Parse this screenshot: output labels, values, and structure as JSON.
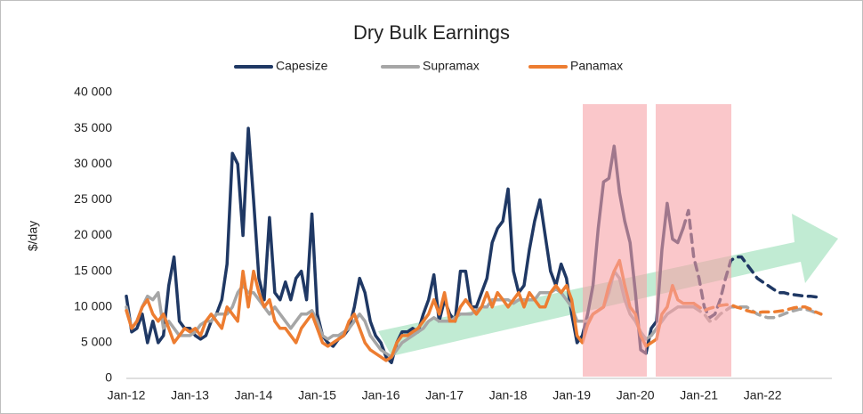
{
  "chart_data": {
    "type": "line",
    "title": "Dry Bulk Earnings",
    "y_label": "$/day",
    "categories": [
      "Jan-12",
      null,
      null,
      null,
      null,
      null,
      null,
      null,
      null,
      null,
      null,
      null,
      "Jan-13",
      null,
      null,
      null,
      null,
      null,
      null,
      null,
      null,
      null,
      null,
      null,
      "Jan-14",
      null,
      null,
      null,
      null,
      null,
      null,
      null,
      null,
      null,
      null,
      null,
      "Jan-15",
      null,
      null,
      null,
      null,
      null,
      null,
      null,
      null,
      null,
      null,
      null,
      "Jan-16",
      null,
      null,
      null,
      null,
      null,
      null,
      null,
      null,
      null,
      null,
      null,
      "Jan-17",
      null,
      null,
      null,
      null,
      null,
      null,
      null,
      null,
      null,
      null,
      null,
      "Jan-18",
      null,
      null,
      null,
      null,
      null,
      null,
      null,
      null,
      null,
      null,
      null,
      "Jan-19",
      null,
      null,
      null,
      null,
      null,
      null,
      null,
      null,
      null,
      null,
      null,
      "Jan-20",
      null,
      null,
      null,
      null,
      null,
      null,
      null,
      null,
      null,
      null,
      null,
      "Jan-21",
      null,
      null,
      null,
      null,
      null,
      null,
      null,
      null,
      null,
      null,
      null,
      "Jan-22",
      null,
      null,
      null,
      null,
      null,
      null,
      null,
      null,
      null,
      null,
      null
    ],
    "ylim": [
      0,
      40000
    ],
    "yticks": [
      0,
      {
        "value": 5000,
        "label": "5 000"
      },
      {
        "value": 10000,
        "label": "10 000"
      },
      {
        "value": 15000,
        "label": "15 000"
      },
      {
        "value": 20000,
        "label": "20 000"
      },
      {
        "value": 25000,
        "label": "25 000"
      },
      {
        "value": 30000,
        "label": "30 000"
      },
      {
        "value": 35000,
        "label": "35 000"
      },
      {
        "value": 40000,
        "label": "40 000"
      }
    ],
    "legend": "top",
    "series": [
      {
        "name": "Capesize",
        "color": "#1f3864",
        "dash": false,
        "values": [
          11500,
          6500,
          7000,
          9000,
          5000,
          8000,
          5000,
          6000,
          13000,
          17000,
          8000,
          7000,
          7000,
          6000,
          5500,
          6000,
          8000,
          9000,
          11000,
          16000,
          31500,
          30000,
          20000,
          35000,
          25000,
          14000,
          11000,
          22500,
          12000,
          11000,
          13500,
          11000,
          14000,
          15000,
          11000,
          23000,
          9000,
          6000,
          5000,
          4500,
          5500,
          6000,
          7000,
          10000,
          14000,
          12000,
          8000,
          6000,
          5000,
          3000,
          2200,
          5000,
          6500,
          6500,
          7000,
          6500,
          9000,
          11000,
          14500,
          8000,
          11000,
          9000,
          8000,
          15000,
          15000,
          10000,
          10000,
          12000,
          14000,
          19000,
          21000,
          22000,
          26500,
          15000,
          12000,
          13000,
          18000,
          22000,
          25000,
          20000,
          15000,
          13000,
          16000,
          14000,
          9000,
          5000,
          6000,
          9000,
          13000,
          21000,
          27500,
          28000,
          32500,
          26000,
          22000,
          19000,
          12000,
          4000,
          3500,
          7000,
          8000,
          18000,
          24500,
          19500,
          19000,
          21000,
          null,
          null,
          null,
          null,
          null,
          null,
          null,
          null,
          null,
          null,
          null,
          null,
          null,
          null,
          null,
          null,
          null,
          null,
          null,
          null,
          null,
          null,
          null,
          null,
          null,
          null
        ]
      },
      {
        "name": "Supramax",
        "color": "#a6a6a6",
        "dash": false,
        "values": [
          10000,
          7000,
          8000,
          10000,
          11500,
          11000,
          12000,
          7000,
          8000,
          7000,
          6000,
          6000,
          6000,
          6500,
          7500,
          8000,
          8000,
          9000,
          9000,
          9000,
          10000,
          12000,
          13000,
          12000,
          12000,
          11000,
          10000,
          9000,
          10000,
          9000,
          8000,
          7000,
          8000,
          9000,
          9000,
          9500,
          8000,
          6000,
          5500,
          6000,
          6000,
          6500,
          7000,
          8000,
          9000,
          8000,
          6000,
          5000,
          4000,
          3500,
          3000,
          4000,
          5000,
          5500,
          6000,
          6500,
          7000,
          8000,
          8500,
          8000,
          8000,
          8000,
          8500,
          9000,
          9000,
          9000,
          9500,
          10000,
          10000,
          11000,
          11000,
          11000,
          11000,
          10500,
          11000,
          11000,
          11000,
          11000,
          12000,
          12000,
          12000,
          12500,
          12000,
          11000,
          10000,
          8000,
          8000,
          8000,
          9000,
          9500,
          10000,
          12000,
          15000,
          14000,
          11000,
          9000,
          8000,
          6500,
          5500,
          6000,
          7000,
          8000,
          9000,
          9500,
          10000,
          10000,
          10000,
          10000,
          null,
          null,
          null,
          null,
          null,
          null,
          null,
          null,
          null,
          null,
          null,
          null,
          null,
          null,
          null,
          null,
          null,
          null,
          null,
          null,
          null,
          null,
          null,
          null
        ]
      },
      {
        "name": "Panamax",
        "color": "#ed7d31",
        "dash": false,
        "values": [
          9500,
          7000,
          8000,
          10000,
          11000,
          9000,
          8000,
          9000,
          7000,
          5000,
          6000,
          7000,
          6500,
          7000,
          6000,
          8000,
          9000,
          8000,
          7000,
          10000,
          9000,
          8000,
          15000,
          10000,
          15000,
          12000,
          10000,
          11000,
          8000,
          7000,
          7000,
          6000,
          5000,
          7000,
          8000,
          9000,
          7000,
          5000,
          4500,
          5000,
          5500,
          6000,
          8000,
          9000,
          7000,
          5000,
          4000,
          3500,
          3000,
          2500,
          3000,
          5000,
          6000,
          6000,
          6500,
          7000,
          8000,
          9000,
          11000,
          9000,
          12000,
          8000,
          8000,
          10000,
          11000,
          10000,
          9000,
          10000,
          12000,
          10000,
          12000,
          11000,
          10000,
          11000,
          12000,
          10000,
          12000,
          11000,
          10000,
          10000,
          12000,
          13000,
          12000,
          13000,
          11000,
          6000,
          5000,
          7500,
          9000,
          9500,
          10000,
          13000,
          15000,
          16500,
          13000,
          10000,
          9000,
          6000,
          4500,
          5000,
          5500,
          9000,
          10000,
          13000,
          11000,
          10500,
          10500,
          10500,
          null,
          null,
          null,
          null,
          null,
          null,
          null,
          null,
          null,
          null,
          null,
          null,
          null,
          null,
          null,
          null,
          null,
          null,
          null,
          null,
          null,
          null,
          null,
          null
        ]
      },
      {
        "name": "Capesize",
        "color": "#1f3864",
        "dash": true,
        "values": [
          null,
          null,
          null,
          null,
          null,
          null,
          null,
          null,
          null,
          null,
          null,
          null,
          null,
          null,
          null,
          null,
          null,
          null,
          null,
          null,
          null,
          null,
          null,
          null,
          null,
          null,
          null,
          null,
          null,
          null,
          null,
          null,
          null,
          null,
          null,
          null,
          null,
          null,
          null,
          null,
          null,
          null,
          null,
          null,
          null,
          null,
          null,
          null,
          null,
          null,
          null,
          null,
          null,
          null,
          null,
          null,
          null,
          null,
          null,
          null,
          null,
          null,
          null,
          null,
          null,
          null,
          null,
          null,
          null,
          null,
          null,
          null,
          null,
          null,
          null,
          null,
          null,
          null,
          null,
          null,
          null,
          null,
          null,
          null,
          null,
          null,
          null,
          null,
          null,
          null,
          null,
          null,
          null,
          null,
          null,
          null,
          null,
          null,
          null,
          null,
          null,
          null,
          null,
          null,
          null,
          21000,
          23500,
          17000,
          14000,
          10000,
          8500,
          9000,
          11000,
          14000,
          16500,
          17000,
          17000,
          16000,
          15000,
          14000,
          13500,
          13000,
          12500,
          12000,
          12000,
          11800,
          11700,
          11600,
          11500,
          11500,
          11400,
          11300
        ]
      },
      {
        "name": "Supramax",
        "color": "#a6a6a6",
        "dash": true,
        "values": [
          null,
          null,
          null,
          null,
          null,
          null,
          null,
          null,
          null,
          null,
          null,
          null,
          null,
          null,
          null,
          null,
          null,
          null,
          null,
          null,
          null,
          null,
          null,
          null,
          null,
          null,
          null,
          null,
          null,
          null,
          null,
          null,
          null,
          null,
          null,
          null,
          null,
          null,
          null,
          null,
          null,
          null,
          null,
          null,
          null,
          null,
          null,
          null,
          null,
          null,
          null,
          null,
          null,
          null,
          null,
          null,
          null,
          null,
          null,
          null,
          null,
          null,
          null,
          null,
          null,
          null,
          null,
          null,
          null,
          null,
          null,
          null,
          null,
          null,
          null,
          null,
          null,
          null,
          null,
          null,
          null,
          null,
          null,
          null,
          null,
          null,
          null,
          null,
          null,
          null,
          null,
          null,
          null,
          null,
          null,
          null,
          null,
          null,
          null,
          null,
          null,
          null,
          null,
          null,
          null,
          null,
          null,
          10000,
          9500,
          9000,
          8000,
          8200,
          9000,
          9500,
          10000,
          10000,
          10000,
          10000,
          9500,
          9000,
          8700,
          8500,
          8500,
          8700,
          9000,
          9300,
          9500,
          9700,
          9700,
          9500,
          9200,
          9000
        ]
      },
      {
        "name": "Panamax",
        "color": "#ed7d31",
        "dash": true,
        "values": [
          null,
          null,
          null,
          null,
          null,
          null,
          null,
          null,
          null,
          null,
          null,
          null,
          null,
          null,
          null,
          null,
          null,
          null,
          null,
          null,
          null,
          null,
          null,
          null,
          null,
          null,
          null,
          null,
          null,
          null,
          null,
          null,
          null,
          null,
          null,
          null,
          null,
          null,
          null,
          null,
          null,
          null,
          null,
          null,
          null,
          null,
          null,
          null,
          null,
          null,
          null,
          null,
          null,
          null,
          null,
          null,
          null,
          null,
          null,
          null,
          null,
          null,
          null,
          null,
          null,
          null,
          null,
          null,
          null,
          null,
          null,
          null,
          null,
          null,
          null,
          null,
          null,
          null,
          null,
          null,
          null,
          null,
          null,
          null,
          null,
          null,
          null,
          null,
          null,
          null,
          null,
          null,
          null,
          null,
          null,
          null,
          null,
          null,
          null,
          null,
          null,
          null,
          null,
          null,
          null,
          null,
          null,
          10500,
          10000,
          9500,
          9800,
          10000,
          10200,
          10300,
          10300,
          10000,
          9800,
          9500,
          9300,
          9200,
          9300,
          9300,
          9300,
          9400,
          9500,
          9700,
          9900,
          10000,
          10000,
          9700,
          9300,
          9000
        ]
      }
    ]
  }
}
